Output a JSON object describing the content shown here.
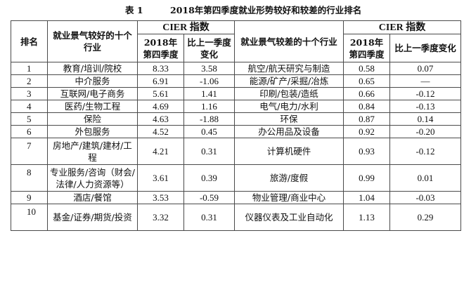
{
  "caption": {
    "number": "表 1",
    "title": "2018年第四季度就业形势较好和较差的行业排名"
  },
  "header": {
    "rank": "排名",
    "good_industries": "就业景气较好的十个行业",
    "cier_good": "CIER 指数",
    "cier_bad": "CIER 指数",
    "q4_2018": "2018年第四季度",
    "qoq_change": "比上一季度变化",
    "bad_industries": "就业景气较差的十个行业",
    "q4_2018_b": "2018年第四季度",
    "qoq_change_b": "比上一季度变化"
  },
  "rows": [
    {
      "rank": "1",
      "good": "教育/培训/院校",
      "good_idx": "8.33",
      "good_chg": "3.58",
      "bad": "航空/航天研究与制造",
      "bad_idx": "0.58",
      "bad_chg": "0.07"
    },
    {
      "rank": "2",
      "good": "中介服务",
      "good_idx": "6.91",
      "good_chg": "-1.06",
      "bad": "能源/矿产/采掘/冶炼",
      "bad_idx": "0.65",
      "bad_chg": "—"
    },
    {
      "rank": "3",
      "good": "互联网/电子商务",
      "good_idx": "5.61",
      "good_chg": "1.41",
      "bad": "印刷/包装/造纸",
      "bad_idx": "0.66",
      "bad_chg": "-0.12"
    },
    {
      "rank": "4",
      "good": "医药/生物工程",
      "good_idx": "4.69",
      "good_chg": "1.16",
      "bad": "电气/电力/水利",
      "bad_idx": "0.84",
      "bad_chg": "-0.13"
    },
    {
      "rank": "5",
      "good": "保险",
      "good_idx": "4.63",
      "good_chg": "-1.88",
      "bad": "环保",
      "bad_idx": "0.87",
      "bad_chg": "0.14"
    },
    {
      "rank": "6",
      "good": "外包服务",
      "good_idx": "4.52",
      "good_chg": "0.45",
      "bad": "办公用品及设备",
      "bad_idx": "0.92",
      "bad_chg": "-0.20"
    },
    {
      "rank": "7",
      "good": "房地产/建筑/建材/工程",
      "good_idx": "4.21",
      "good_chg": "0.31",
      "bad": "计算机硬件",
      "bad_idx": "0.93",
      "bad_chg": "-0.12"
    },
    {
      "rank": "8",
      "good": "专业服务/咨询（财会/法律/人力资源等）",
      "good_idx": "3.61",
      "good_chg": "0.39",
      "bad": "旅游/度假",
      "bad_idx": "0.99",
      "bad_chg": "0.01"
    },
    {
      "rank": "9",
      "good": "酒店/餐馆",
      "good_idx": "3.53",
      "good_chg": "-0.59",
      "bad": "物业管理/商业中心",
      "bad_idx": "1.04",
      "bad_chg": "-0.03"
    },
    {
      "rank": "10",
      "good": "基金/证券/期货/投资",
      "good_idx": "3.32",
      "good_chg": "0.31",
      "bad": "仪器仪表及工业自动化",
      "bad_idx": "1.13",
      "bad_chg": "0.29"
    }
  ]
}
